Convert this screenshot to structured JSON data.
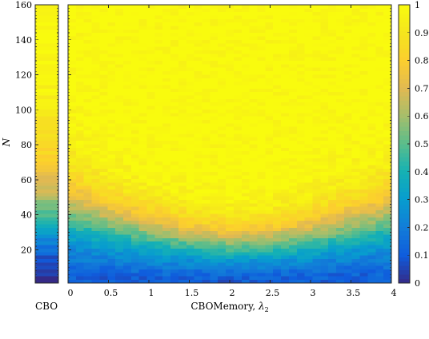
{
  "chart_data": {
    "type": "heatmap",
    "colormap": "parula",
    "left_panel": {
      "name": "CBO",
      "xlabel": "CBO"
    },
    "main_panel": {
      "xlabel_text": "CBOMemory, ",
      "xlabel_symbol": "λ",
      "xlabel_subscript": "2",
      "x_ticks": [
        0,
        0.5,
        1,
        1.5,
        2,
        2.5,
        3,
        3.5,
        4
      ],
      "x_tick_labels": [
        "0",
        "0.5",
        "1",
        "1.5",
        "2",
        "2.5",
        "3",
        "3.5",
        "4"
      ],
      "xlim": [
        0,
        4
      ],
      "x_step": 0.1
    },
    "y_axis": {
      "label": "N",
      "ticks": [
        20,
        40,
        60,
        80,
        100,
        120,
        140,
        160
      ],
      "tick_labels": [
        "20",
        "40",
        "60",
        "80",
        "100",
        "120",
        "140",
        "160"
      ],
      "ylim": [
        1,
        160
      ]
    },
    "colorbar": {
      "ticks": [
        0,
        0.1,
        0.2,
        0.3,
        0.4,
        0.5,
        0.6,
        0.7,
        0.8,
        0.9,
        1
      ],
      "tick_labels": [
        "0",
        "0.1",
        "0.2",
        "0.3",
        "0.4",
        "0.5",
        "0.6",
        "0.7",
        "0.8",
        "0.9",
        "1"
      ],
      "range": [
        0,
        1
      ]
    },
    "cbo_column_profile": [
      {
        "N": 1,
        "value": 0.0
      },
      {
        "N": 8,
        "value": 0.03
      },
      {
        "N": 15,
        "value": 0.08
      },
      {
        "N": 25,
        "value": 0.22
      },
      {
        "N": 35,
        "value": 0.38
      },
      {
        "N": 45,
        "value": 0.55
      },
      {
        "N": 55,
        "value": 0.68
      },
      {
        "N": 70,
        "value": 0.8
      },
      {
        "N": 90,
        "value": 0.9
      },
      {
        "N": 110,
        "value": 0.96
      },
      {
        "N": 130,
        "value": 0.99
      },
      {
        "N": 160,
        "value": 1.0
      }
    ],
    "main_half_success_N": [
      {
        "lambda2": 0,
        "N": 42
      },
      {
        "lambda2": 0.5,
        "N": 35
      },
      {
        "lambda2": 1,
        "N": 30
      },
      {
        "lambda2": 1.5,
        "N": 26
      },
      {
        "lambda2": 2,
        "N": 24
      },
      {
        "lambda2": 2.5,
        "N": 25
      },
      {
        "lambda2": 3,
        "N": 28
      },
      {
        "lambda2": 3.5,
        "N": 33
      },
      {
        "lambda2": 4,
        "N": 38
      }
    ]
  }
}
